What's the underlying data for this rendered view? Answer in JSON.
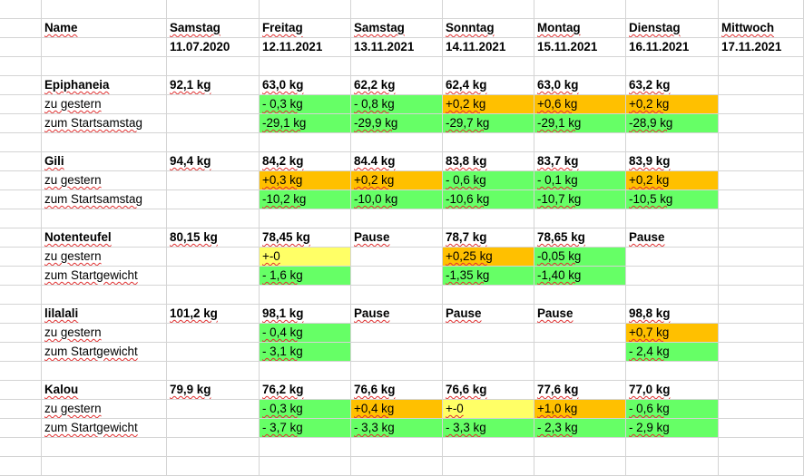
{
  "colors": {
    "green": "#66ff66",
    "orange": "#ffc000",
    "yellow": "#ffff66",
    "grid": "#d4d4d4"
  },
  "header": {
    "name_label": "Name",
    "columns": [
      {
        "day": "Samstag",
        "date": "11.07.2020"
      },
      {
        "day": "Freitag",
        "date": "12.11.2021"
      },
      {
        "day": "Samstag",
        "date": "13.11.2021"
      },
      {
        "day": "Sonntag",
        "date": "14.11.2021"
      },
      {
        "day": "Montag",
        "date": "15.11.2021"
      },
      {
        "day": "Dienstag",
        "date": "16.11.2021"
      },
      {
        "day": "Mittwoch",
        "date": "17.11.2021"
      }
    ]
  },
  "people": [
    {
      "name": "Epiphaneia",
      "weights": [
        "92,1 kg",
        "63,0 kg",
        "62,2 kg",
        "62,4 kg",
        "63,0 kg",
        "63,2 kg",
        ""
      ],
      "diff_label": "zu gestern",
      "diff": [
        "",
        "- 0,3 kg",
        "- 0,8 kg",
        "+0,2 kg",
        "+0,6 kg",
        "+0,2 kg",
        ""
      ],
      "diff_colors": [
        "",
        "green",
        "green",
        "orange",
        "orange",
        "orange",
        ""
      ],
      "total_label": "zum Startsamstag",
      "total": [
        "",
        "-29,1 kg",
        "-29,9 kg",
        "-29,7 kg",
        "-29,1 kg",
        "-28,9 kg",
        ""
      ],
      "total_colors": [
        "",
        "green",
        "green",
        "green",
        "green",
        "green",
        ""
      ]
    },
    {
      "name": "Gili",
      "weights": [
        "94,4 kg",
        "84,2 kg",
        "84.4 kg",
        "83,8 kg",
        "83,7 kg",
        "83,9 kg",
        ""
      ],
      "diff_label": "zu gestern",
      "diff": [
        "",
        "+0,3 kg",
        "+0,2 kg",
        "- 0,6 kg",
        "- 0,1 kg",
        "+0,2 kg",
        ""
      ],
      "diff_colors": [
        "",
        "orange",
        "orange",
        "green",
        "green",
        "orange",
        ""
      ],
      "total_label": "zum Startsamstag",
      "total": [
        "",
        "-10,2 kg",
        "-10,0 kg",
        "-10,6 kg",
        "-10,7 kg",
        "-10,5 kg",
        ""
      ],
      "total_colors": [
        "",
        "green",
        "green",
        "green",
        "green",
        "green",
        ""
      ]
    },
    {
      "name": "Notenteufel",
      "weights": [
        "80,15 kg",
        "78,45 kg",
        "Pause",
        "78,7 kg",
        "78,65 kg",
        "Pause",
        ""
      ],
      "diff_label": "zu gestern",
      "diff": [
        "",
        "+-0",
        "",
        "+0,25 kg",
        "-0,05 kg",
        "",
        ""
      ],
      "diff_colors": [
        "",
        "yellow",
        "",
        "orange",
        "green",
        "",
        ""
      ],
      "total_label": "zum Startgewicht",
      "total": [
        "",
        "- 1,6 kg",
        "",
        "-1,35 kg",
        "-1,40 kg",
        "",
        ""
      ],
      "total_colors": [
        "",
        "green",
        "",
        "green",
        "green",
        "",
        ""
      ]
    },
    {
      "name": "lilalali",
      "weights": [
        "101,2 kg",
        "98,1 kg",
        "Pause",
        "Pause",
        "Pause",
        "98,8 kg",
        ""
      ],
      "diff_label": "zu gestern",
      "diff": [
        "",
        "- 0,4 kg",
        "",
        "",
        "",
        "+0,7 kg",
        ""
      ],
      "diff_colors": [
        "",
        "green",
        "",
        "",
        "",
        "orange",
        ""
      ],
      "total_label": "zum Startgewicht",
      "total": [
        "",
        "- 3,1 kg",
        "",
        "",
        "",
        "- 2,4 kg",
        ""
      ],
      "total_colors": [
        "",
        "green",
        "",
        "",
        "",
        "green",
        ""
      ]
    },
    {
      "name": "Kalou",
      "weights": [
        "79,9 kg",
        "76,2 kg",
        "76,6 kg",
        "76,6 kg",
        "77,6 kg",
        "77,0 kg",
        ""
      ],
      "diff_label": "zu gestern",
      "diff": [
        "",
        "- 0,3 kg",
        "+0,4 kg",
        "+-0",
        "+1,0 kg",
        "- 0,6 kg",
        ""
      ],
      "diff_colors": [
        "",
        "green",
        "orange",
        "yellow",
        "orange",
        "green",
        ""
      ],
      "total_label": "zum Startgewicht",
      "total": [
        "",
        "- 3,7 kg",
        "- 3,3 kg",
        "- 3,3 kg",
        "- 2,3 kg",
        "- 2,9 kg",
        ""
      ],
      "total_colors": [
        "",
        "green",
        "green",
        "green",
        "green",
        "green",
        ""
      ]
    }
  ]
}
